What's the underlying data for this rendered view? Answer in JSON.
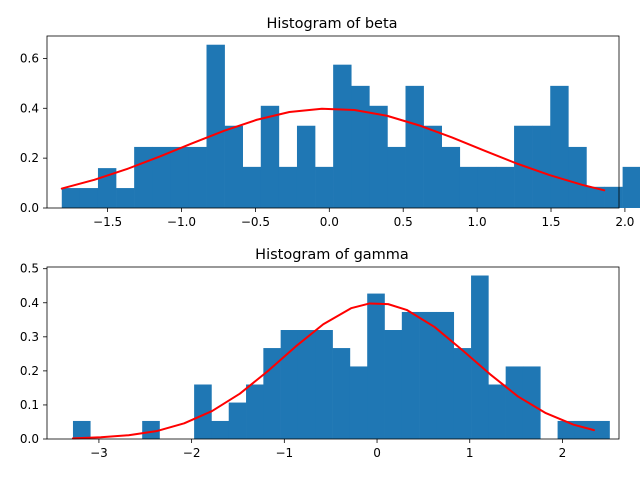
{
  "chart_data": [
    {
      "type": "bar",
      "title": "Histogram of beta",
      "xlabel": "",
      "ylabel": "",
      "xlim": [
        -1.91,
        1.96
      ],
      "ylim": [
        0,
        0.69
      ],
      "xticks": [
        -1.5,
        -1.0,
        -0.5,
        0.0,
        0.5,
        1.0,
        1.5,
        2.0
      ],
      "xtick_labels": [
        "−1.5",
        "−1.0",
        "−0.5",
        "0.0",
        "0.5",
        "1.0",
        "1.5",
        "2.0"
      ],
      "yticks": [
        0.0,
        0.2,
        0.4,
        0.6
      ],
      "ytick_labels": [
        "0.0",
        "0.2",
        "0.4",
        "0.6"
      ],
      "grid": false,
      "bin_start": -1.81,
      "bin_width": 0.1224,
      "values": [
        0.08,
        0.08,
        0.16,
        0.08,
        0.245,
        0.245,
        0.245,
        0.245,
        0.655,
        0.33,
        0.165,
        0.41,
        0.165,
        0.33,
        0.165,
        0.575,
        0.49,
        0.41,
        0.245,
        0.49,
        0.33,
        0.245,
        0.165,
        0.165,
        0.165,
        0.33,
        0.33,
        0.49,
        0.245,
        0.085,
        0.085,
        0.165
      ],
      "bar_color": "#1f77b4",
      "curve_color": "#ff0000",
      "curve": {
        "x": [
          -1.81,
          -1.59,
          -1.37,
          -1.15,
          -0.93,
          -0.71,
          -0.49,
          -0.27,
          -0.05,
          0.17,
          0.39,
          0.61,
          0.83,
          1.05,
          1.27,
          1.49,
          1.71,
          1.86
        ],
        "y": [
          0.078,
          0.113,
          0.156,
          0.206,
          0.259,
          0.31,
          0.354,
          0.385,
          0.398,
          0.393,
          0.37,
          0.331,
          0.283,
          0.23,
          0.178,
          0.132,
          0.093,
          0.071
        ]
      }
    },
    {
      "type": "bar",
      "title": "Histogram of gamma",
      "xlabel": "",
      "ylabel": "",
      "xlim": [
        -3.56,
        2.61
      ],
      "ylim": [
        0,
        0.505
      ],
      "xticks": [
        -3,
        -2,
        -1,
        0,
        1,
        2
      ],
      "xtick_labels": [
        "−3",
        "−2",
        "−1",
        "0",
        "1",
        "2"
      ],
      "yticks": [
        0.0,
        0.1,
        0.2,
        0.3,
        0.4,
        0.5
      ],
      "ytick_labels": [
        "0.0",
        "0.1",
        "0.2",
        "0.3",
        "0.4",
        "0.5"
      ],
      "grid": false,
      "bin_start": -3.28,
      "bin_width": 0.1867,
      "values": [
        0.053,
        0.0,
        0.0,
        0.0,
        0.053,
        0.0,
        0.0,
        0.16,
        0.053,
        0.107,
        0.16,
        0.267,
        0.32,
        0.32,
        0.32,
        0.267,
        0.213,
        0.427,
        0.32,
        0.373,
        0.373,
        0.373,
        0.267,
        0.48,
        0.16,
        0.213,
        0.213,
        0.0,
        0.053,
        0.053,
        0.053
      ],
      "bar_color": "#1f77b4",
      "curve_color": "#ff0000",
      "curve": {
        "x": [
          -3.28,
          -2.98,
          -2.68,
          -2.38,
          -2.08,
          -1.78,
          -1.48,
          -1.18,
          -0.88,
          -0.58,
          -0.28,
          -0.08,
          0.12,
          0.32,
          0.62,
          0.92,
          1.22,
          1.52,
          1.82,
          2.12,
          2.34
        ],
        "y": [
          0.002,
          0.005,
          0.011,
          0.023,
          0.046,
          0.082,
          0.133,
          0.199,
          0.271,
          0.337,
          0.384,
          0.398,
          0.396,
          0.379,
          0.329,
          0.261,
          0.19,
          0.125,
          0.076,
          0.042,
          0.026
        ]
      }
    }
  ]
}
